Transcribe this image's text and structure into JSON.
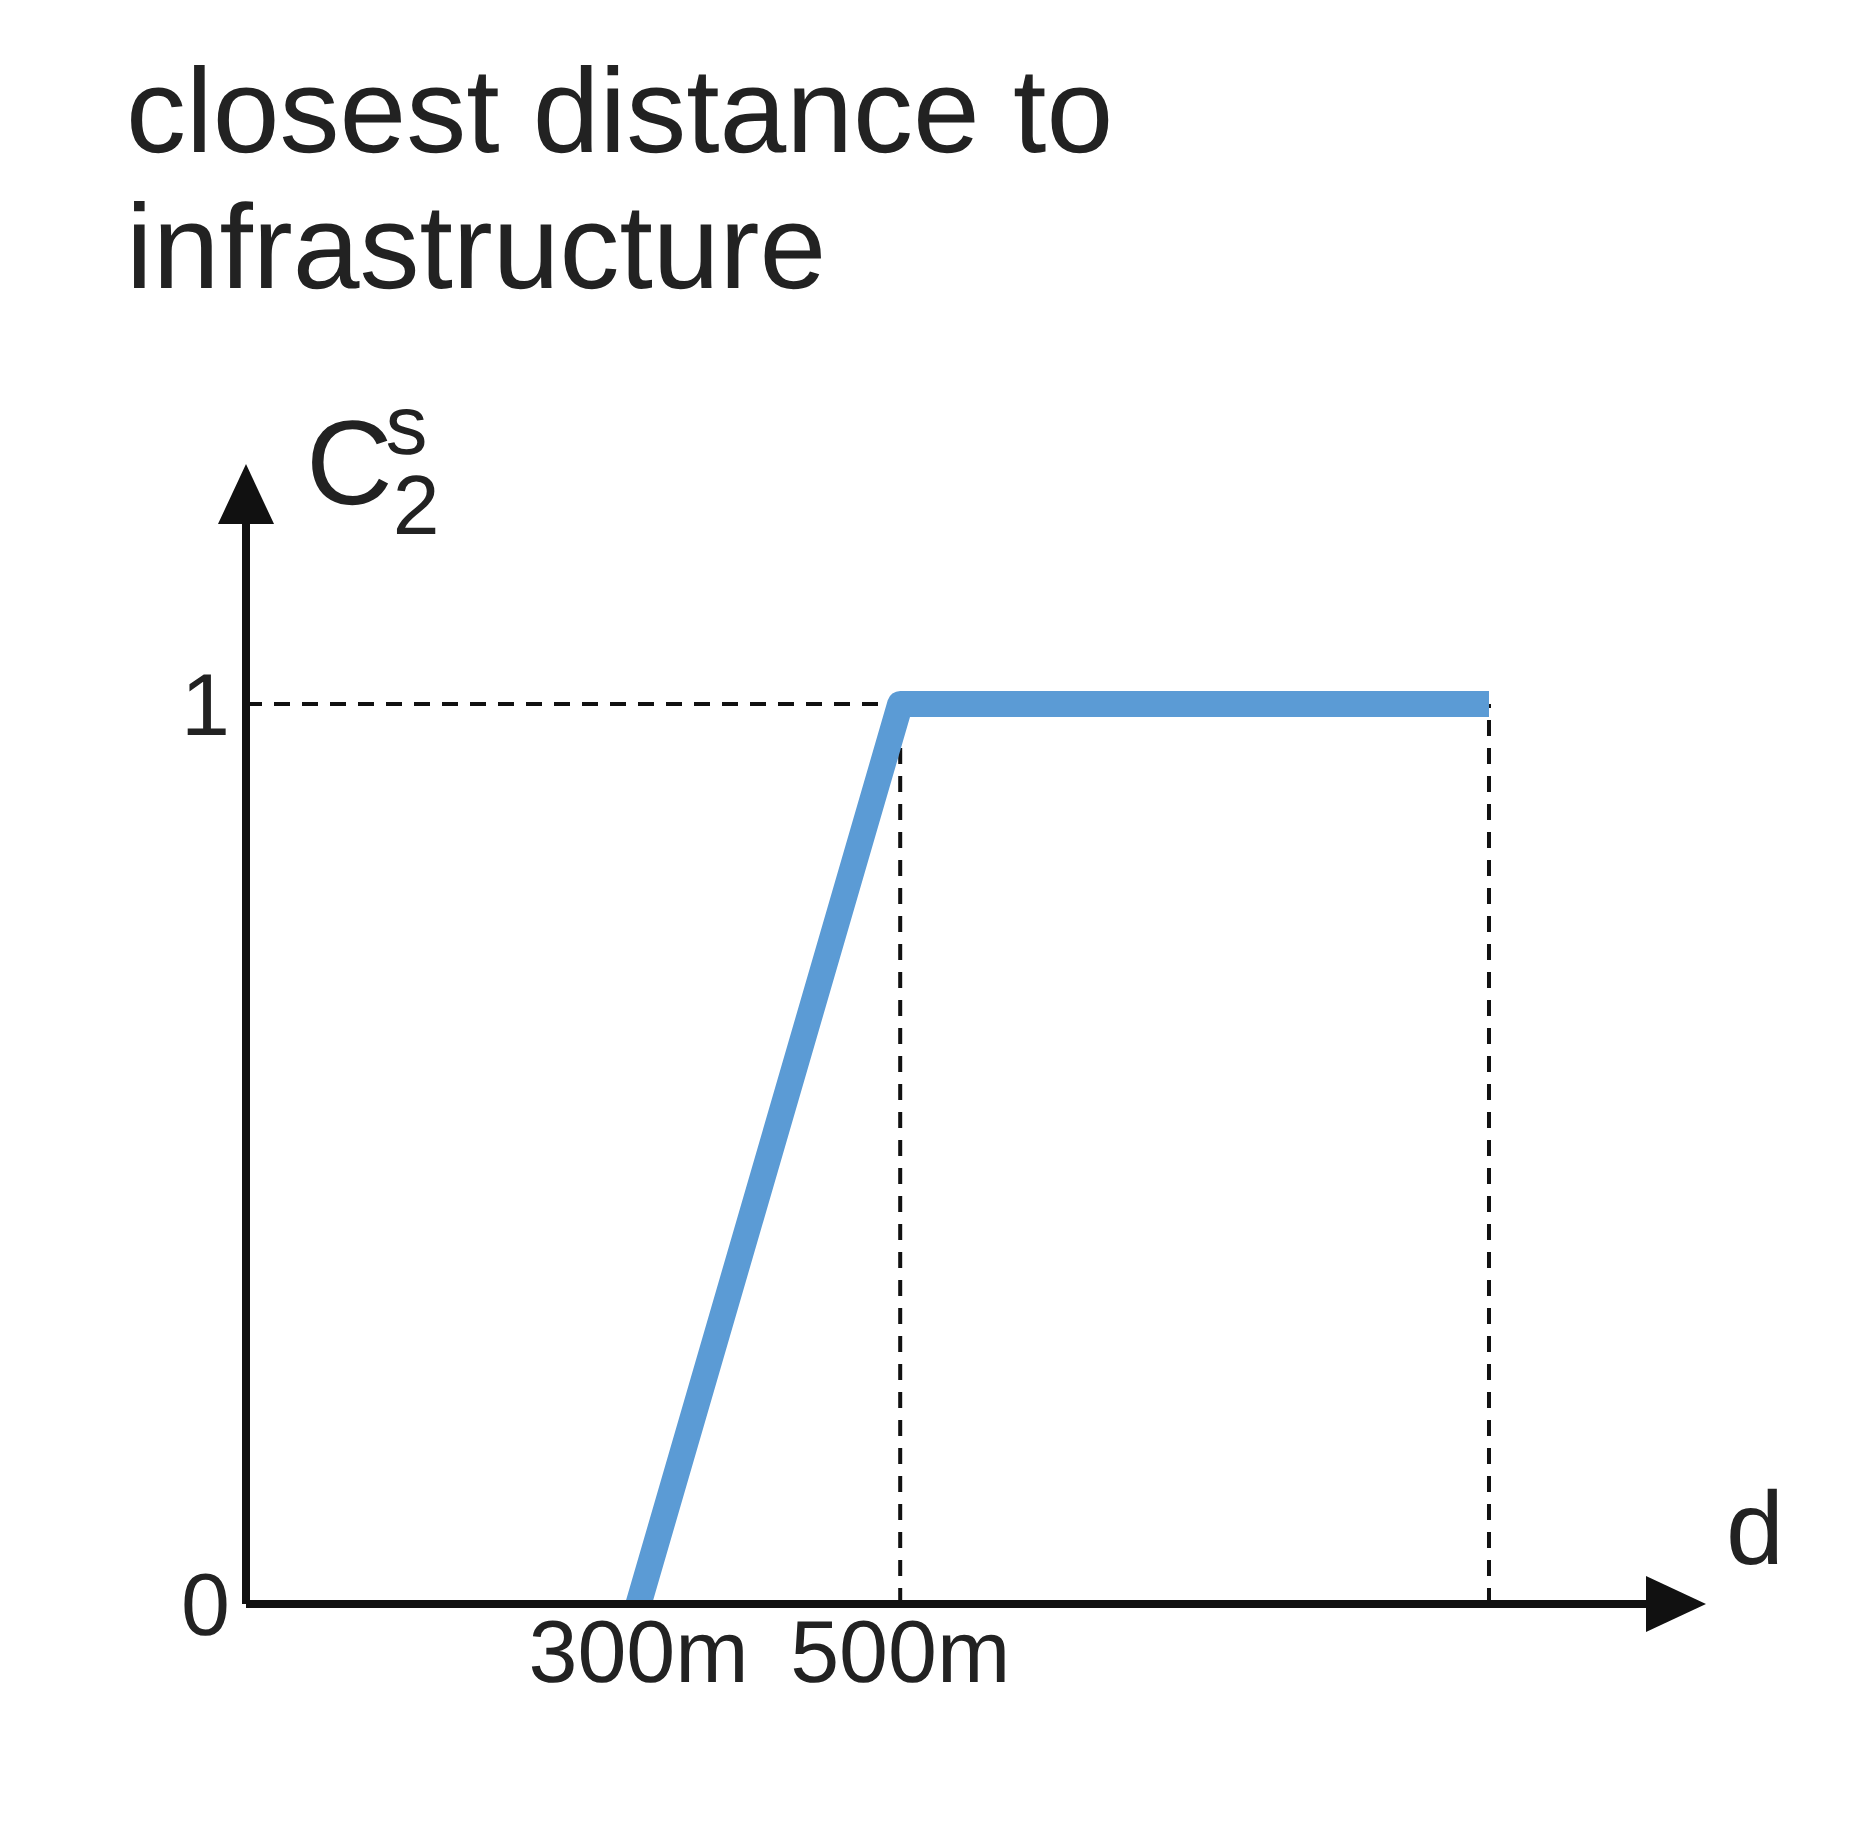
{
  "chart_data": {
    "type": "line",
    "title": "closest distance to\ninfrastructure",
    "xlabel": "d",
    "ylabel": "C$_{2}$$^{s}$",
    "x": [
      300,
      500,
      950
    ],
    "series": [
      {
        "color": "#5b9bd5",
        "values": [
          0,
          1,
          1
        ]
      }
    ],
    "xlim": [
      0,
      1070
    ],
    "xticks": [
      {
        "value": 300,
        "label": "300m"
      },
      {
        "value": 500,
        "label": "500m"
      }
    ],
    "ylim": [
      0,
      1.2
    ],
    "yticks": [
      0,
      1
    ],
    "ref_lines": [
      {
        "axis": "x",
        "value": 500,
        "line_style": "dashed"
      },
      {
        "axis": "x",
        "value": 950,
        "line_style": "dashed"
      },
      {
        "axis": "y",
        "value": 1,
        "line_style": "dashed"
      }
    ],
    "marker": "none",
    "line_style": "solid"
  }
}
